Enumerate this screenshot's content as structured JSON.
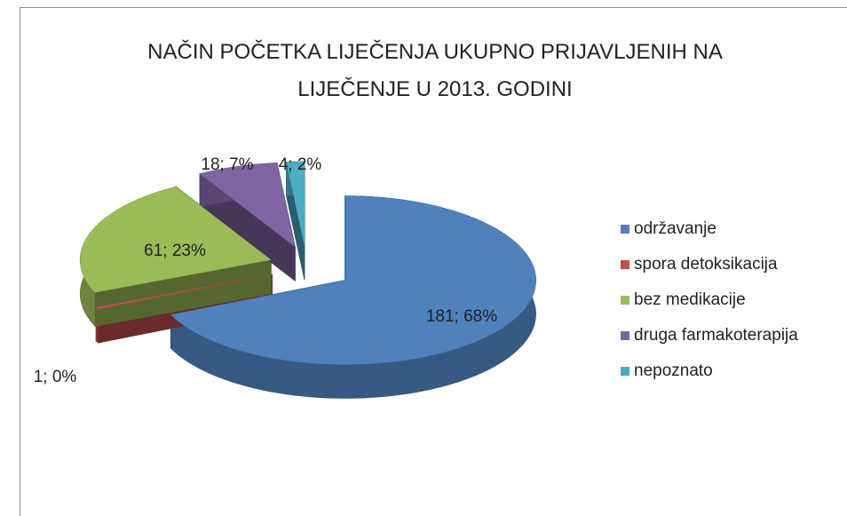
{
  "chart_data": {
    "type": "pie3d",
    "title": "NAČIN POČETKA LIJEČENJA UKUPNO PRIJAVLJENIH NA LIJEČENJE U 2013. GODINI",
    "categories": [
      "održavanje",
      "spora detoksikacija",
      "bez medikacije",
      "druga farmakoterapija",
      "nepoznato"
    ],
    "values": [
      181,
      1,
      61,
      18,
      4
    ],
    "value_labels": [
      "181; 68%",
      "1; 0%",
      "61; 23%",
      "18; 7%",
      "4; 2%"
    ],
    "colors": [
      "#4f81bd",
      "#c0504d",
      "#9bbb59",
      "#8064a2",
      "#4bacc6"
    ],
    "legend": "right"
  }
}
